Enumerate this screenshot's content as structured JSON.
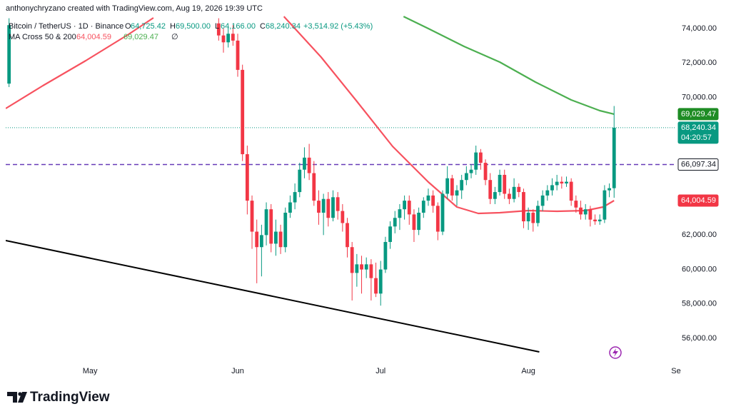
{
  "chart_data": {
    "type": "candlestick",
    "header": "anthonychryzano created with TradingView.com, Aug 19, 2026 19:39 UTC",
    "legend": {
      "symbol": "Bitcoin / TetherUS · 1D · Binance",
      "ohlc": [
        {
          "key": "O",
          "text": "64,725.42"
        },
        {
          "key": "H",
          "text": "69,500.00"
        },
        {
          "key": "L",
          "text": "64,166.00"
        },
        {
          "key": "C"
        }
      ],
      "change": "+3,514.92 (+5.43%)",
      "indicator": "MA Cross 50 & 200",
      "indicator_icon": "∅"
    },
    "xlim": [
      103.3,
      243.7
    ],
    "xticks": [
      {
        "value": 121,
        "label": "May"
      },
      {
        "value": 152,
        "label": "Jun"
      },
      {
        "value": 182,
        "label": "Jul"
      },
      {
        "value": 213,
        "label": "Aug"
      },
      {
        "value": 244,
        "label": "Se"
      }
    ],
    "ylim": [
      54507,
      74747
    ],
    "yticks": [
      {
        "value": 56000,
        "label": "56,000.00"
      },
      {
        "value": 58000,
        "label": "58,000.00"
      },
      {
        "value": 60000,
        "label": "60,000.00"
      },
      {
        "value": 62000,
        "label": "62,000.00"
      },
      {
        "value": 64000,
        "label": "64,000.00"
      },
      {
        "value": 66000,
        "label": "66,000.00"
      },
      {
        "value": 68000,
        "label": "68,000.00"
      },
      {
        "value": 70000,
        "label": "70,000.00"
      },
      {
        "value": 72000,
        "label": "72,000.00"
      },
      {
        "value": 74000,
        "label": "74,000.00"
      }
    ],
    "up_color": "#089981",
    "down_color": "#f23645",
    "candles": {
      "x": [
        104,
        148,
        149,
        150,
        151,
        152,
        153,
        154,
        155,
        156,
        157,
        158,
        159,
        160,
        161,
        162,
        163,
        164,
        165,
        166,
        167,
        168,
        169,
        170,
        171,
        172,
        173,
        174,
        175,
        176,
        177,
        178,
        179,
        180,
        181,
        182,
        183,
        184,
        185,
        186,
        187,
        188,
        189,
        190,
        191,
        192,
        193,
        194,
        195,
        196,
        197,
        198,
        199,
        200,
        201,
        202,
        203,
        204,
        205,
        206,
        207,
        208,
        209,
        210,
        211,
        212,
        213,
        214,
        215,
        216,
        217,
        218,
        219,
        220,
        221,
        222,
        223,
        224,
        225,
        226,
        227,
        228,
        229,
        230,
        231
      ],
      "open": [
        70800,
        74300,
        73600,
        73200,
        73700,
        73300,
        71600,
        66700,
        64000,
        62200,
        61300,
        62000,
        63500,
        61500,
        62200,
        61300,
        63300,
        63900,
        64500,
        65800,
        66500,
        65600,
        64000,
        63300,
        64100,
        63000,
        64200,
        63400,
        62700,
        61300,
        59800,
        60300,
        60000,
        60300,
        59500,
        58600,
        60000,
        61600,
        62500,
        63000,
        63500,
        64000,
        63200,
        62300,
        63300,
        64000,
        64300,
        63700,
        62200,
        64400,
        65300,
        64300,
        64600,
        65200,
        65600,
        65800,
        66800,
        66200,
        65200,
        64100,
        64500,
        65500,
        64400,
        64100,
        64800,
        64500,
        62800,
        63300,
        62700,
        63700,
        64300,
        64600,
        64900,
        65100,
        65000,
        65100,
        64000,
        63600,
        63200,
        63500,
        62900,
        62800,
        62900,
        64600,
        64725.42
      ],
      "high": [
        74600,
        74600,
        74000,
        74100,
        74200,
        73700,
        71900,
        67200,
        64300,
        62900,
        62600,
        63900,
        63800,
        62900,
        62600,
        63600,
        64300,
        65000,
        66200,
        67100,
        67300,
        66300,
        64600,
        64400,
        64500,
        64600,
        64500,
        63800,
        63000,
        61600,
        60900,
        60800,
        60700,
        60600,
        60400,
        60500,
        61900,
        62800,
        63400,
        63800,
        64300,
        64300,
        63500,
        63600,
        64200,
        64700,
        64600,
        63900,
        64600,
        66000,
        65500,
        64900,
        65500,
        66000,
        66100,
        67200,
        67000,
        66400,
        65600,
        64800,
        65800,
        65800,
        64700,
        65300,
        65000,
        64700,
        63600,
        63500,
        64000,
        64600,
        64900,
        65300,
        65500,
        65400,
        65400,
        65300,
        64300,
        64000,
        63800,
        63700,
        63200,
        63200,
        64900,
        65000,
        69500
      ],
      "low": [
        70600,
        73300,
        72600,
        72900,
        73000,
        71200,
        66300,
        63200,
        61200,
        59200,
        59600,
        61400,
        61000,
        60800,
        60900,
        61000,
        63000,
        63500,
        64200,
        65300,
        65200,
        63700,
        62600,
        62000,
        62500,
        62800,
        62900,
        62200,
        60700,
        58200,
        59000,
        58600,
        59500,
        58200,
        58400,
        57900,
        59800,
        61200,
        62100,
        62300,
        62900,
        62600,
        61600,
        62000,
        63000,
        63700,
        63300,
        61700,
        62000,
        64100,
        64000,
        63700,
        64100,
        64900,
        65300,
        65500,
        65800,
        64900,
        63800,
        63800,
        64300,
        64100,
        63800,
        63900,
        64200,
        62400,
        62300,
        62200,
        62500,
        63400,
        64000,
        64300,
        64600,
        64700,
        64800,
        63700,
        63300,
        62900,
        62900,
        62500,
        62600,
        62600,
        62700,
        64200,
        64166
      ],
      "close": [
        74200,
        73600,
        73200,
        73700,
        73300,
        71600,
        66700,
        64000,
        62200,
        61300,
        62000,
        63500,
        61500,
        62200,
        61300,
        63300,
        63900,
        64500,
        65800,
        66500,
        65600,
        64000,
        63300,
        64100,
        63000,
        64200,
        63400,
        62700,
        61300,
        59800,
        60300,
        60000,
        60300,
        59500,
        58600,
        60000,
        61600,
        62500,
        63000,
        63500,
        64000,
        63200,
        62300,
        63300,
        64000,
        64300,
        63700,
        62200,
        64400,
        65300,
        64300,
        64600,
        65200,
        65600,
        65800,
        66800,
        66200,
        65200,
        64100,
        64500,
        65500,
        64400,
        64100,
        64800,
        64500,
        62800,
        63300,
        62700,
        63700,
        64300,
        64600,
        64900,
        65100,
        65000,
        65100,
        64000,
        63600,
        63200,
        63500,
        62900,
        62800,
        62900,
        64600,
        64725.42,
        68240.34
      ],
      "last_label": "68,240.34",
      "countdown": "04:20:57"
    },
    "series": [
      {
        "color": "#f7525f",
        "x": [
          103.3,
          111.1,
          120.1,
          129.1,
          134.3,
          150,
          161.7,
          169.5,
          177,
          184.5,
          192,
          198,
          202.5,
          207,
          213,
          219,
          225,
          228.7,
          231
        ],
        "values": [
          69355,
          70682,
          72134,
          73668,
          74622,
          null,
          74700,
          72341,
          69769,
          67156,
          65082,
          63631,
          63258,
          63299,
          63424,
          63382,
          63424,
          63631,
          64004.59
        ],
        "last_label": "64,004.59"
      },
      {
        "color": "#4caf50",
        "x": [
          186.8,
          192,
          199.5,
          207,
          214.5,
          222,
          228,
          231
        ],
        "values": [
          74700,
          74000,
          72963,
          72051,
          70889,
          69852,
          69230,
          69029.47
        ],
        "last_label": "69,029.47"
      }
    ],
    "hline": {
      "value": 66097.34,
      "label": "66,097.34",
      "color": "#673ab7"
    },
    "trendline": {
      "x": [
        103.3,
        215.3
      ],
      "values": [
        61681,
        55211
      ],
      "color": "#000000"
    },
    "logo": "TradingView"
  }
}
